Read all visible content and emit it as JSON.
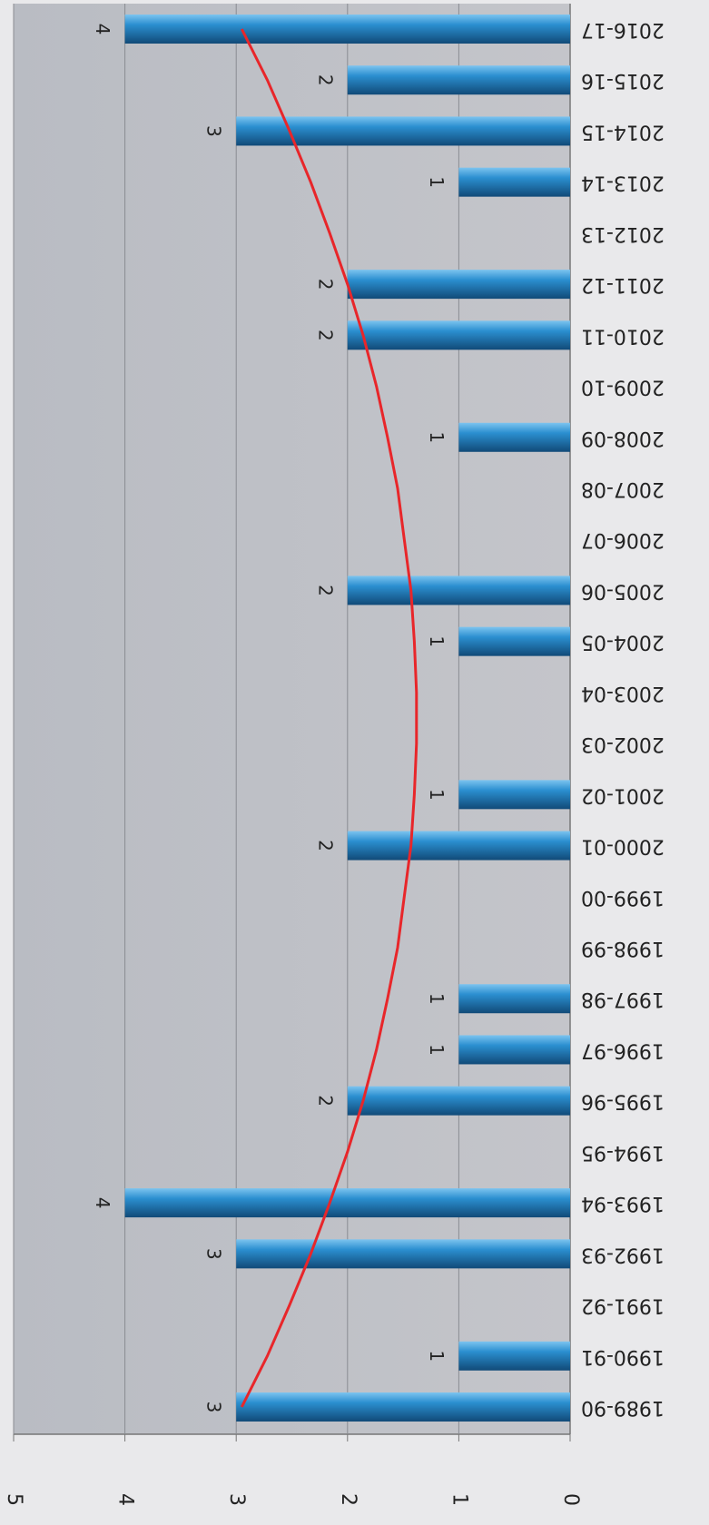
{
  "chart_data": {
    "type": "bar",
    "categories": [
      "1989-90",
      "1990-91",
      "1991-92",
      "1992-93",
      "1993-94",
      "1994-95",
      "1995-96",
      "1996-97",
      "1997-98",
      "1998-99",
      "1999-00",
      "2000-01",
      "2001-02",
      "2002-03",
      "2003-04",
      "2004-05",
      "2005-06",
      "2006-07",
      "2007-08",
      "2008-09",
      "2009-10",
      "2010-11",
      "2011-12",
      "2012-13",
      "2013-14",
      "2014-15",
      "2015-16",
      "2016-17"
    ],
    "values": [
      3,
      1,
      null,
      3,
      4,
      null,
      2,
      1,
      1,
      null,
      null,
      2,
      1,
      null,
      null,
      1,
      2,
      null,
      null,
      1,
      null,
      2,
      2,
      null,
      1,
      3,
      2,
      4
    ],
    "color": "#2b8fd0",
    "trendline": {
      "values": [
        2.95,
        2.72,
        2.52,
        2.33,
        2.16,
        2.0,
        1.86,
        1.74,
        1.64,
        1.55,
        1.49,
        1.43,
        1.4,
        1.38,
        1.38,
        1.4,
        1.43,
        1.49,
        1.55,
        1.64,
        1.74,
        1.86,
        2.0,
        2.16,
        2.33,
        2.52,
        2.72,
        2.95
      ],
      "color": "#e8262a"
    },
    "ylim": [
      0,
      5
    ],
    "yticks": [
      0,
      1,
      2,
      3,
      4,
      5
    ],
    "grid": true,
    "data_labels": true
  }
}
